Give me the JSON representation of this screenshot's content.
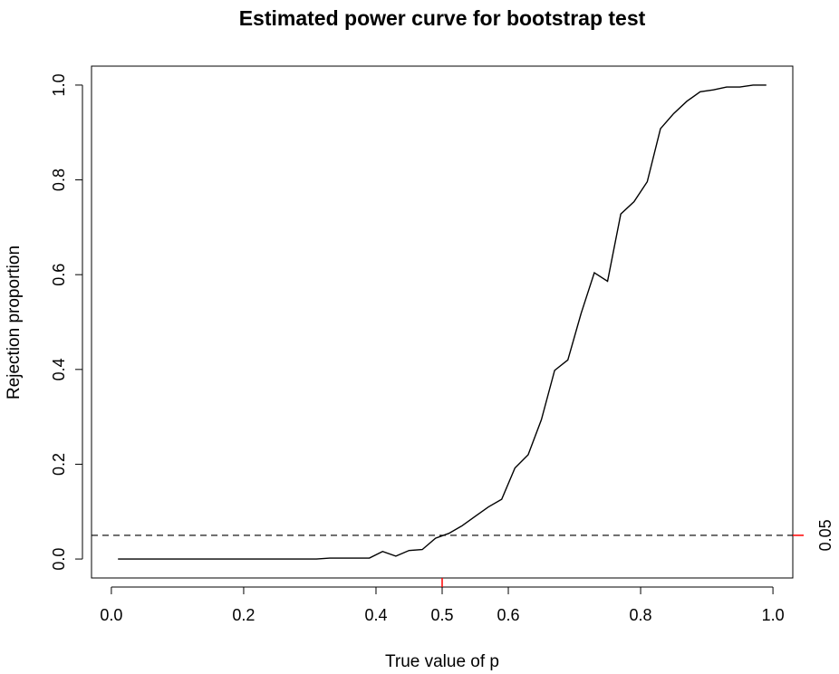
{
  "chart_data": {
    "type": "line",
    "title": "Estimated power curve for bootstrap test",
    "xlabel": "True value of p",
    "ylabel": "Rejection proportion",
    "xlim": [
      -0.03,
      1.03
    ],
    "ylim": [
      -0.04,
      1.04
    ],
    "x_ticks": [
      0.0,
      0.2,
      0.4,
      0.5,
      0.6,
      0.8,
      1.0
    ],
    "x_tick_labels": [
      "0.0",
      "0.2",
      "0.4",
      "0.5",
      "0.6",
      "0.8",
      "1.0"
    ],
    "y_ticks": [
      0.0,
      0.2,
      0.4,
      0.6,
      0.8,
      1.0
    ],
    "y_tick_labels": [
      "0.0",
      "0.2",
      "0.4",
      "0.6",
      "0.8",
      "1.0"
    ],
    "grid": false,
    "series": [
      {
        "x": [
          0.01,
          0.03,
          0.05,
          0.07,
          0.09,
          0.11,
          0.13,
          0.15,
          0.17,
          0.19,
          0.21,
          0.23,
          0.25,
          0.27,
          0.29,
          0.31,
          0.33,
          0.35,
          0.37,
          0.39,
          0.41,
          0.43,
          0.45,
          0.47,
          0.49,
          0.51,
          0.53,
          0.55,
          0.57,
          0.59,
          0.61,
          0.63,
          0.65,
          0.67,
          0.69,
          0.71,
          0.73,
          0.75,
          0.77,
          0.79,
          0.81,
          0.83,
          0.85,
          0.87,
          0.89,
          0.91,
          0.93,
          0.95,
          0.97,
          0.99
        ],
        "y": [
          0,
          0,
          0,
          0,
          0,
          0,
          0,
          0,
          0,
          0,
          0,
          0,
          0,
          0,
          0,
          0,
          0.002,
          0.002,
          0.002,
          0.002,
          0.016,
          0.006,
          0.018,
          0.02,
          0.044,
          0.054,
          0.07,
          0.09,
          0.11,
          0.126,
          0.192,
          0.22,
          0.294,
          0.398,
          0.42,
          0.518,
          0.604,
          0.586,
          0.728,
          0.754,
          0.796,
          0.908,
          0.94,
          0.966,
          0.986,
          0.99,
          0.996,
          0.996,
          1.0,
          1.0
        ],
        "color": "#000000"
      }
    ],
    "reference_line": {
      "y": 0.05,
      "style": "dashed",
      "color": "#000000",
      "label": "0.05",
      "marker_color": "#ff0000"
    },
    "x_marker": {
      "x": 0.5,
      "color": "#ff0000"
    }
  }
}
